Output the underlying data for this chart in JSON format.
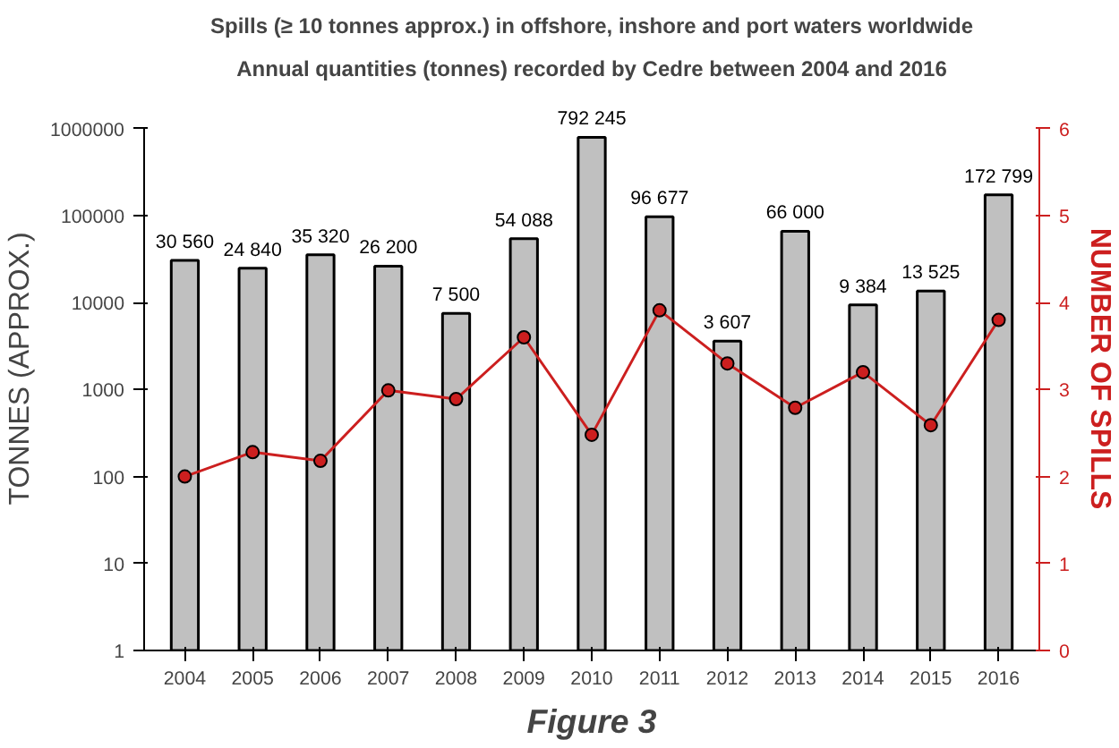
{
  "chart_data": {
    "type": "bar",
    "title": "Spills (≥ 10 tonnes approx.) in offshore, inshore and port waters worldwide",
    "subtitle": "Annual quantities (tonnes) recorded by Cedre between 2004 and 2016",
    "categories": [
      "2004",
      "2005",
      "2006",
      "2007",
      "2008",
      "2009",
      "2010",
      "2011",
      "2012",
      "2013",
      "2014",
      "2015",
      "2016"
    ],
    "ylabel": "TONNES (APPROX.)",
    "y2label": "NUMBER OF SPILLS",
    "log": "y",
    "ylim": [
      1,
      1000000
    ],
    "yticks": [
      1,
      10,
      100,
      1000,
      10000,
      100000,
      1000000
    ],
    "y2lim": [
      0,
      6
    ],
    "y2ticks": [
      0,
      1,
      2,
      3,
      4,
      5,
      6
    ],
    "series": [
      {
        "color": "#c0c0c0",
        "values": [
          30560,
          24840,
          35320,
          26200,
          7500,
          54088,
          792245,
          96677,
          3607,
          66000,
          9384,
          13525,
          172799
        ],
        "value_labels": [
          "30 560",
          "24 840",
          "35 320",
          "26 200",
          "7 500",
          "54 088",
          "792 245",
          "96 677",
          "3 607",
          "66 000",
          "9 384",
          "13 525",
          "172 799"
        ]
      },
      {
        "type": "line",
        "axis": "y2",
        "color": "#cc1f1f",
        "marker": "circle",
        "line_style": "solid",
        "values": [
          2.0,
          2.28,
          2.18,
          2.99,
          2.89,
          3.6,
          2.48,
          3.91,
          3.3,
          2.79,
          3.2,
          2.59,
          3.8
        ]
      }
    ],
    "grid": false,
    "annotations": [
      "Figure 3"
    ]
  }
}
